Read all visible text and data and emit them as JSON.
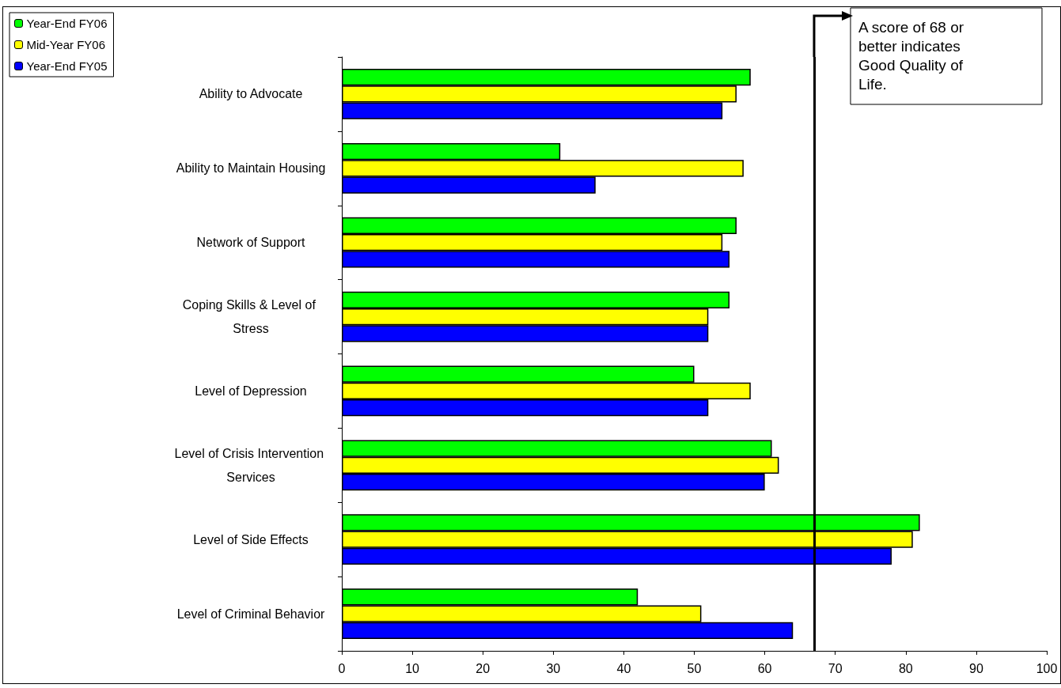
{
  "chart_data": {
    "type": "bar",
    "orientation": "horizontal",
    "categories": [
      "Ability to Advocate",
      "Ability to Maintain Housing",
      "Network of Support",
      "Coping Skills & Level of Stress",
      "Level of Depression",
      "Level of Crisis Intervention Services",
      "Level of Side Effects",
      "Level of Criminal Behavior"
    ],
    "series": [
      {
        "name": "Year-End FY06",
        "color": "#00ff00",
        "values": [
          58,
          31,
          56,
          55,
          50,
          61,
          82,
          42
        ]
      },
      {
        "name": "Mid-Year FY06",
        "color": "#ffff00",
        "values": [
          56,
          57,
          54,
          52,
          58,
          62,
          81,
          51
        ]
      },
      {
        "name": "Year-End FY05",
        "color": "#0000ff",
        "values": [
          54,
          36,
          55,
          52,
          52,
          60,
          78,
          64
        ]
      }
    ],
    "xlim": [
      0,
      100
    ],
    "xticks": [
      0,
      10,
      20,
      30,
      40,
      50,
      60,
      70,
      80,
      90,
      100
    ],
    "grid": false,
    "legend": "top left",
    "ref_lines": [
      {
        "axis": "x",
        "value": 67,
        "label": "A score of 68 or better indicates Good Quality of Life.",
        "color": "#000000"
      }
    ]
  }
}
